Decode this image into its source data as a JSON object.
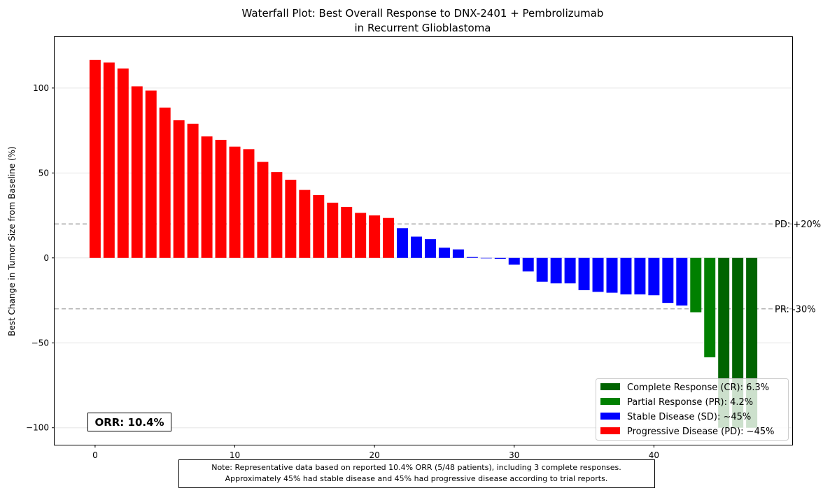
{
  "chart_data": {
    "type": "bar",
    "title_line1": "Waterfall Plot: Best Overall Response to DNX-2401 + Pembrolizumab",
    "title_line2": "in Recurrent Glioblastoma",
    "xlabel": "",
    "ylabel": "Best Change in Tumor Size from Baseline (%)",
    "xlim": [
      -2.9,
      49.9
    ],
    "ylim": [
      -110,
      130
    ],
    "xticks": [
      0,
      10,
      20,
      30,
      40
    ],
    "yticks": [
      -100,
      -50,
      0,
      50,
      100
    ],
    "ytick_labels": [
      "−100",
      "−50",
      "0",
      "50",
      "100"
    ],
    "grid": "horizontal",
    "legend_position": "lower-right",
    "colors": {
      "CR": "#006400",
      "PR": "#008000",
      "SD": "#0000ff",
      "PD": "#ff0000",
      "reference_line": "#aaaaaa"
    },
    "x": [
      0,
      1,
      2,
      3,
      4,
      5,
      6,
      7,
      8,
      9,
      10,
      11,
      12,
      13,
      14,
      15,
      16,
      17,
      18,
      19,
      20,
      21,
      22,
      23,
      24,
      25,
      26,
      27,
      28,
      29,
      30,
      31,
      32,
      33,
      34,
      35,
      36,
      37,
      38,
      39,
      40,
      41,
      42,
      43,
      44,
      45,
      46,
      47
    ],
    "values": [
      116.5,
      115,
      111.5,
      101,
      98.5,
      88.5,
      81,
      79,
      71.5,
      69.5,
      65.5,
      64,
      56.5,
      50.5,
      46,
      40,
      37,
      32.5,
      30,
      26.5,
      25,
      23.5,
      17.5,
      12.5,
      11,
      6,
      5,
      0.5,
      0,
      -0.5,
      -4,
      -8,
      -14,
      -15,
      -15,
      -19,
      -20,
      -20.5,
      -21.5,
      -21.5,
      -22,
      -26.5,
      -28,
      -32,
      -58.5,
      -100,
      -100,
      -100
    ],
    "categories_by_bar": [
      "PD",
      "PD",
      "PD",
      "PD",
      "PD",
      "PD",
      "PD",
      "PD",
      "PD",
      "PD",
      "PD",
      "PD",
      "PD",
      "PD",
      "PD",
      "PD",
      "PD",
      "PD",
      "PD",
      "PD",
      "PD",
      "PD",
      "SD",
      "SD",
      "SD",
      "SD",
      "SD",
      "SD",
      "SD",
      "SD",
      "SD",
      "SD",
      "SD",
      "SD",
      "SD",
      "SD",
      "SD",
      "SD",
      "SD",
      "SD",
      "SD",
      "SD",
      "SD",
      "PR",
      "PR",
      "CR",
      "CR",
      "CR"
    ],
    "reference_lines": [
      {
        "y": 20,
        "label": "PD: +20%"
      },
      {
        "y": -30,
        "label": "PR: -30%"
      }
    ],
    "legend": [
      {
        "key": "CR",
        "label": "Complete Response (CR): 6.3%"
      },
      {
        "key": "PR",
        "label": "Partial Response (PR): 4.2%"
      },
      {
        "key": "SD",
        "label": "Stable Disease (SD): ~45%"
      },
      {
        "key": "PD",
        "label": "Progressive Disease (PD): ~45%"
      }
    ],
    "annotation": "ORR: 10.4%",
    "note_line1": "Note: Representative data based on reported 10.4% ORR (5/48 patients), including 3 complete responses.",
    "note_line2": "Approximately 45% had stable disease and 45% had progressive disease according to trial reports."
  }
}
